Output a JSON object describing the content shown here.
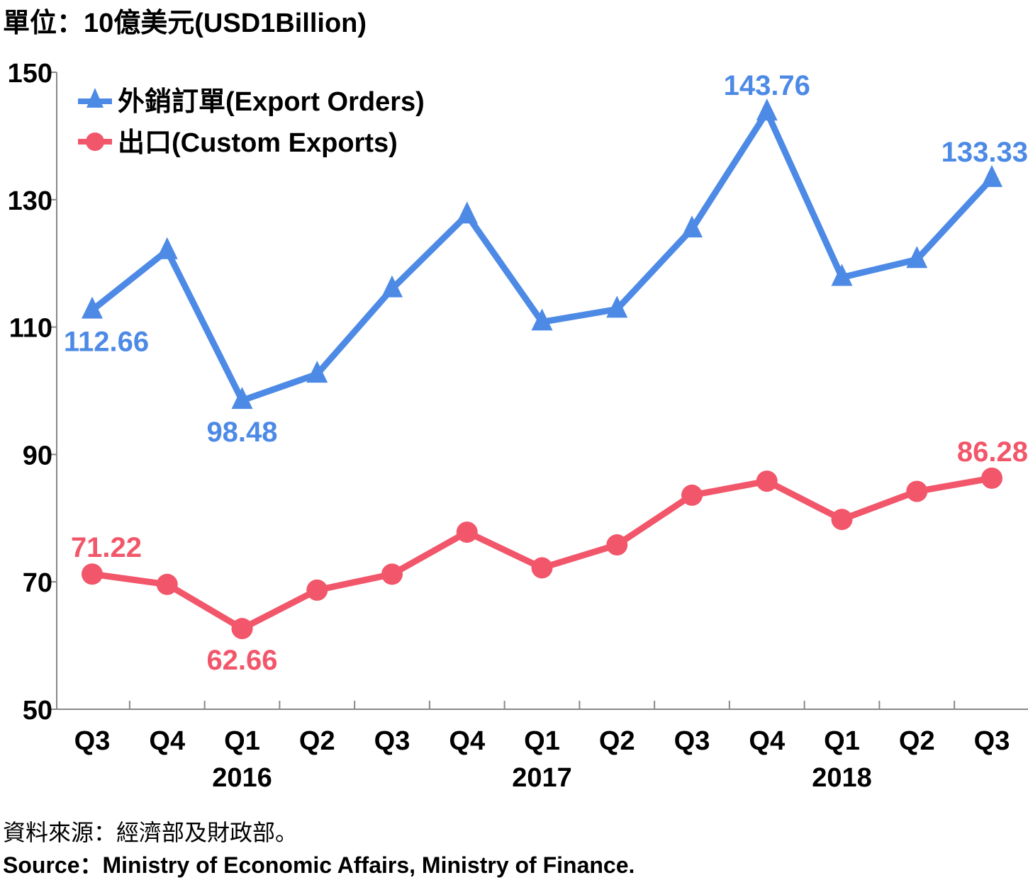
{
  "chart_data": {
    "type": "line",
    "unit_label": "單位：10億美元(USD1Billion)",
    "categories": [
      "Q3",
      "Q4",
      "Q1",
      "Q2",
      "Q3",
      "Q4",
      "Q1",
      "Q2",
      "Q3",
      "Q4",
      "Q1",
      "Q2",
      "Q3"
    ],
    "year_labels": [
      {
        "label": "2016",
        "index": 2
      },
      {
        "label": "2017",
        "index": 6
      },
      {
        "label": "2018",
        "index": 10
      }
    ],
    "y_ticks": [
      "50",
      "70",
      "90",
      "110",
      "130",
      "150"
    ],
    "ylim": [
      50,
      150
    ],
    "grid": false,
    "legend_position": "top-left",
    "series": [
      {
        "name": "外銷訂單(Export Orders)",
        "color": "#4d8ae6",
        "marker": "triangle",
        "values": [
          112.66,
          122.0,
          98.48,
          102.6,
          116.0,
          127.6,
          110.8,
          112.8,
          125.4,
          143.76,
          117.8,
          120.6,
          133.33
        ],
        "data_labels": [
          {
            "index": 0,
            "text": "112.66",
            "position": "below"
          },
          {
            "index": 2,
            "text": "98.48",
            "position": "below"
          },
          {
            "index": 9,
            "text": "143.76",
            "position": "above"
          },
          {
            "index": 12,
            "text": "133.33",
            "position": "above"
          }
        ]
      },
      {
        "name": "出口(Custom Exports)",
        "color": "#f2566a",
        "marker": "circle",
        "values": [
          71.22,
          69.6,
          62.66,
          68.7,
          71.2,
          77.8,
          72.2,
          75.8,
          83.6,
          85.8,
          79.8,
          84.2,
          86.28
        ],
        "data_labels": [
          {
            "index": 0,
            "text": "71.22",
            "position": "above"
          },
          {
            "index": 2,
            "text": "62.66",
            "position": "below"
          },
          {
            "index": 12,
            "text": "86.28",
            "position": "above"
          }
        ]
      }
    ]
  },
  "source": {
    "zh": "資料來源：經濟部及財政部。",
    "en": "Source：Ministry of Economic Affairs, Ministry of Finance."
  }
}
